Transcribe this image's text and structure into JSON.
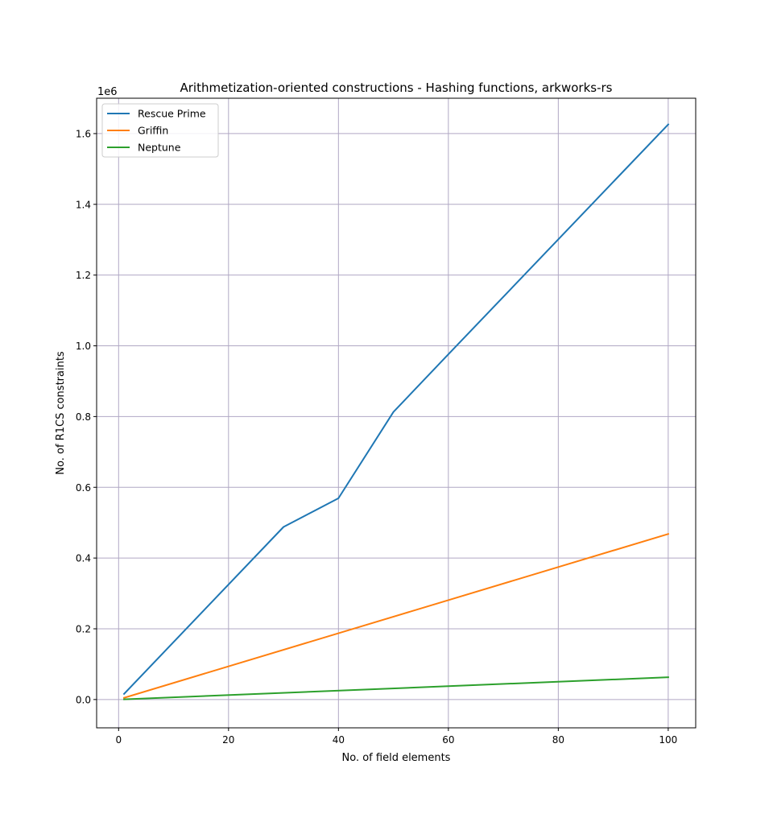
{
  "chart_data": {
    "type": "line",
    "title": "Arithmetization-oriented constructions - Hashing functions, arkworks-rs",
    "xlabel": "No. of field elements",
    "ylabel": "No. of R1CS constraints",
    "y_scale_label": "1e6",
    "xlim": [
      -4,
      105
    ],
    "ylim": [
      -0.08,
      1.7
    ],
    "x_ticks": [
      0,
      20,
      40,
      60,
      80,
      100
    ],
    "y_ticks": [
      0.0,
      0.2,
      0.4,
      0.6,
      0.8,
      1.0,
      1.2,
      1.4,
      1.6
    ],
    "x_tick_labels": [
      "0",
      "20",
      "40",
      "60",
      "80",
      "100"
    ],
    "y_tick_labels": [
      "0.0",
      "0.2",
      "0.4",
      "0.6",
      "0.8",
      "1.0",
      "1.2",
      "1.4",
      "1.6"
    ],
    "grid": true,
    "legend_position": "top-left",
    "series": [
      {
        "name": "Rescue Prime",
        "color": "#1f77b4",
        "x": [
          1,
          30,
          40,
          50,
          60,
          100
        ],
        "y": [
          0.016,
          0.488,
          0.569,
          0.813,
          0.976,
          1.626
        ]
      },
      {
        "name": "Griffin",
        "color": "#ff7f0e",
        "x": [
          1,
          100
        ],
        "y": [
          0.005,
          0.468
        ]
      },
      {
        "name": "Neptune",
        "color": "#2ca02c",
        "x": [
          1,
          100
        ],
        "y": [
          0.0006,
          0.063
        ]
      }
    ]
  }
}
